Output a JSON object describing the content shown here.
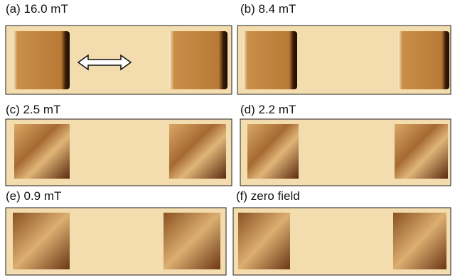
{
  "panels": [
    {
      "label": "(a) 16.0 mT"
    },
    {
      "label": "(b) 8.4 mT"
    },
    {
      "label": "(c) 2.5 mT"
    },
    {
      "label": "(d) 2.2 mT"
    },
    {
      "label": "(e) 0.9 mT"
    },
    {
      "label": "(f) zero field"
    }
  ]
}
